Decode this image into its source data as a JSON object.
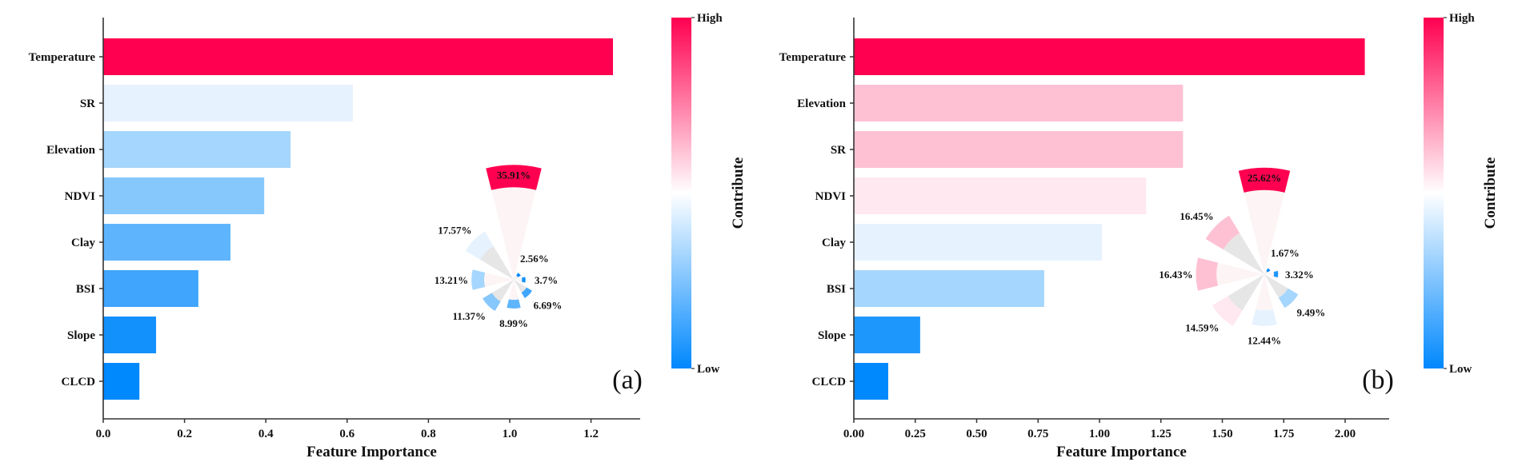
{
  "chart_data": [
    {
      "type": "bar",
      "orientation": "horizontal",
      "panel_label": "(a)",
      "categories": [
        "Temperature",
        "SR",
        "Elevation",
        "NDVI",
        "Clay",
        "BSI",
        "Slope",
        "CLCD"
      ],
      "values": [
        1.254,
        0.614,
        0.461,
        0.396,
        0.313,
        0.234,
        0.13,
        0.089
      ],
      "bar_colors": [
        "#ff0050",
        "#e6f2fe",
        "#a5d6fd",
        "#86c7fc",
        "#5fb5fd",
        "#3fa5fd",
        "#1290fb",
        "#0088fd"
      ],
      "xlabel": "Feature Importance",
      "ylabel": "",
      "xlim": [
        0,
        1.32
      ],
      "xticks": [
        "0.0",
        "0.2",
        "0.4",
        "0.6",
        "0.8",
        "1.0",
        "1.2"
      ],
      "xtick_values": [
        0,
        0.2,
        0.4,
        0.6,
        0.8,
        1.0,
        1.2
      ],
      "colorbar": {
        "title": "Contribute",
        "high_label": "High",
        "low_label": "Low",
        "high_color": "#ff0050",
        "mid_color": "#ffffff",
        "low_color": "#0088fd"
      },
      "inset_polar": {
        "type": "polar-bar",
        "order_clockwise_from_top": [
          "Temperature",
          "CLCD",
          "Slope",
          "BSI",
          "Clay",
          "NDVI",
          "Elevation",
          "SR"
        ],
        "percent_labels": [
          "35.91%",
          "2.56%",
          "3.7%",
          "6.69%",
          "8.99%",
          "11.37%",
          "13.21%",
          "17.57%"
        ],
        "percent_values": [
          35.91,
          2.56,
          3.7,
          6.69,
          8.99,
          11.37,
          13.21,
          17.57
        ],
        "colors": [
          "#ff0050",
          "#0088fd",
          "#1290fb",
          "#3fa5fd",
          "#5fb5fd",
          "#86c7fc",
          "#a5d6fd",
          "#e6f2fe"
        ]
      }
    },
    {
      "type": "bar",
      "orientation": "horizontal",
      "panel_label": "(b)",
      "categories": [
        "Temperature",
        "Elevation",
        "SR",
        "NDVI",
        "Clay",
        "BSI",
        "Slope",
        "CLCD"
      ],
      "values": [
        2.08,
        1.34,
        1.34,
        1.19,
        1.01,
        0.775,
        0.27,
        0.14
      ],
      "bar_colors": [
        "#ff0050",
        "#fec1d3",
        "#fec1d3",
        "#ffe8ef",
        "#e6f2fe",
        "#a5d6fd",
        "#1e97fc",
        "#0088fd"
      ],
      "xlabel": "Feature Importance",
      "ylabel": "",
      "xlim": [
        0,
        2.2
      ],
      "xticks": [
        "0.00",
        "0.25",
        "0.50",
        "0.75",
        "1.00",
        "1.25",
        "1.50",
        "1.75",
        "2.00"
      ],
      "xtick_values": [
        0,
        0.25,
        0.5,
        0.75,
        1.0,
        1.25,
        1.5,
        1.75,
        2.0
      ],
      "colorbar": {
        "title": "Contribute",
        "high_label": "High",
        "low_label": "Low",
        "high_color": "#ff0050",
        "mid_color": "#ffffff",
        "low_color": "#0088fd"
      },
      "inset_polar": {
        "type": "polar-bar",
        "order_clockwise_from_top": [
          "Temperature",
          "CLCD",
          "Slope",
          "BSI",
          "Clay",
          "NDVI",
          "SR",
          "Elevation"
        ],
        "percent_labels": [
          "25.62%",
          "1.67%",
          "3.32%",
          "9.49%",
          "12.44%",
          "14.59%",
          "16.43%",
          "16.45%"
        ],
        "percent_values": [
          25.62,
          1.67,
          3.32,
          9.49,
          12.44,
          14.59,
          16.43,
          16.45
        ],
        "colors": [
          "#ff0050",
          "#0088fd",
          "#1e97fc",
          "#a5d6fd",
          "#e6f2fe",
          "#ffe8ef",
          "#fec1d3",
          "#fec1d3"
        ]
      }
    }
  ]
}
